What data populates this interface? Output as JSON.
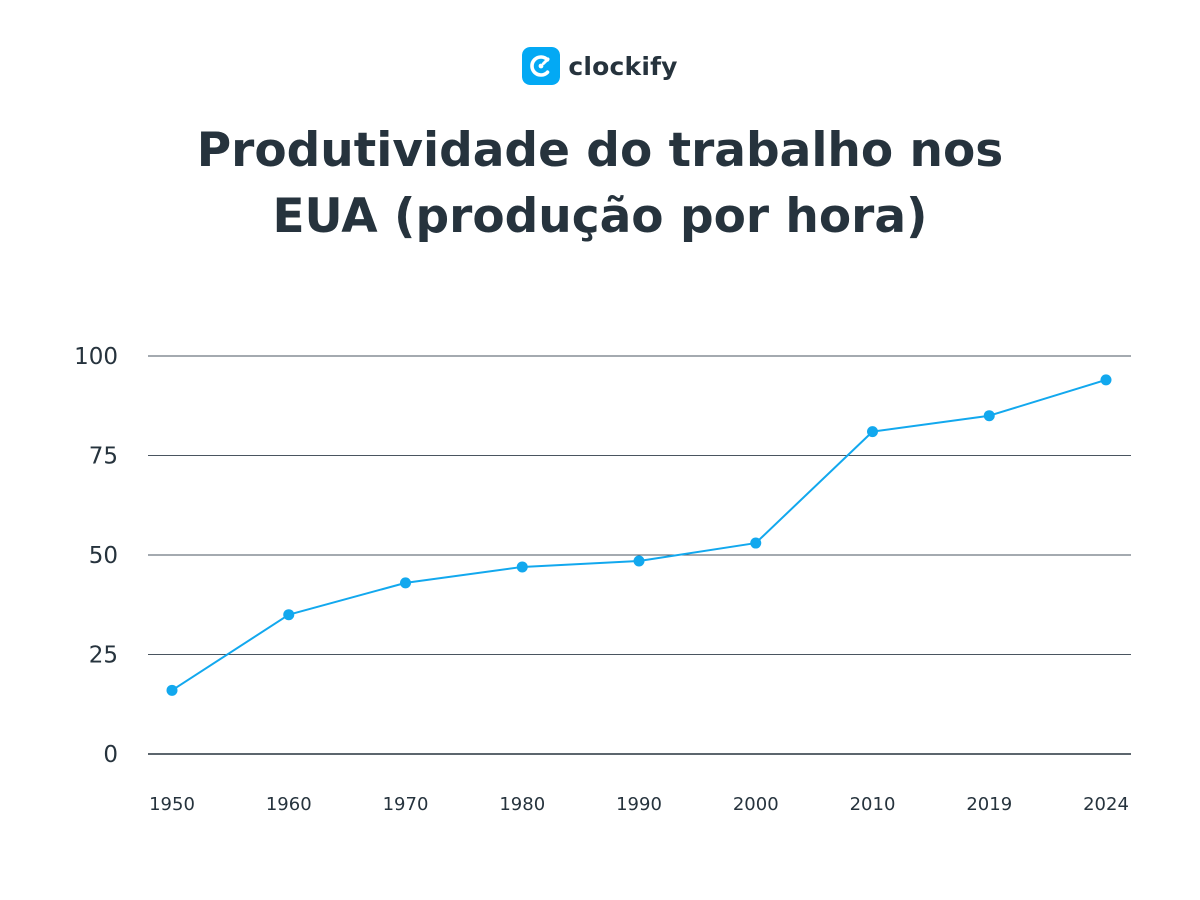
{
  "brand": {
    "name": "clockify",
    "color": "#03a9f4"
  },
  "chart_data": {
    "type": "line",
    "title": "Produtividade do trabalho nos EUA (produção por hora)",
    "title_lines": [
      "Produtividade do trabalho nos",
      "EUA (produção por hora)"
    ],
    "categories": [
      "1950",
      "1960",
      "1970",
      "1980",
      "1990",
      "2000",
      "2010",
      "2019",
      "2024"
    ],
    "series": [
      {
        "values": [
          16,
          35,
          43,
          47,
          48.5,
          53,
          81,
          85,
          94
        ],
        "color": "#12a8ee"
      }
    ],
    "yticks": [
      0,
      25,
      50,
      75,
      100
    ],
    "ylim": [
      0,
      100
    ],
    "grid": true,
    "xlabel": "",
    "ylabel": ""
  }
}
